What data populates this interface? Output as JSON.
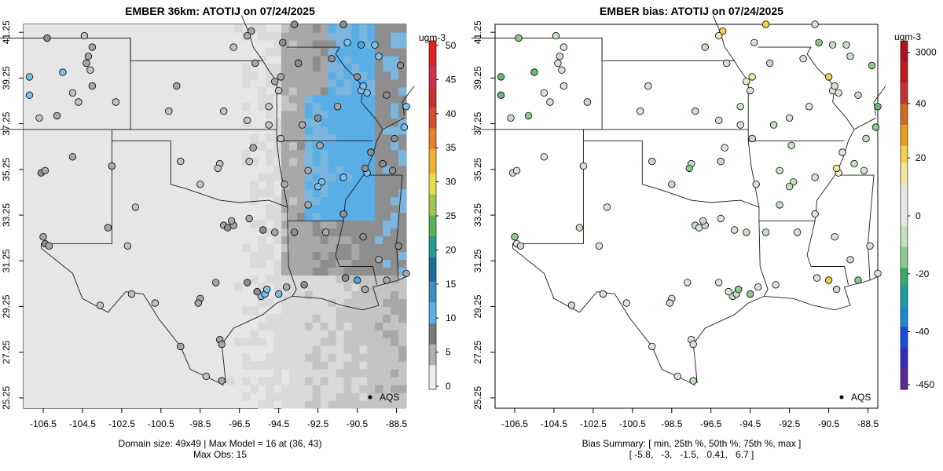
{
  "left_panel": {
    "title": "EMBER 36km: ATOTIJ on 07/24/2025",
    "unit": "ugm-3",
    "colorbar_ticks": [
      "50",
      "45",
      "40",
      "35",
      "30",
      "25",
      "20",
      "15",
      "10",
      "5",
      "0"
    ],
    "caption_line1": "Domain size: 49x49 | Max Model = 16 at (36, 43)",
    "caption_line2": "Max Obs: 15",
    "legend_label": "AQS"
  },
  "right_panel": {
    "title": "EMBER bias: ATOTIJ on 07/24/2025",
    "unit": "ugm-3",
    "colorbar_ticks": [
      "3000",
      "40",
      "20",
      "0",
      "-20",
      "-40",
      "-450"
    ],
    "caption_line1": "Bias Summary: [ min, 25th %, 50th %, 75th %, max ]",
    "caption_line2": "[ -5.8,   -3,   -1.5,   0.41,   6.7 ]",
    "legend_label": "AQS"
  },
  "axes": {
    "x_ticks": [
      "-106.5",
      "-104.5",
      "-102.5",
      "-100.5",
      "-98.5",
      "-96.5",
      "-94.5",
      "-92.5",
      "-90.5",
      "-88.5"
    ],
    "y_ticks": [
      "41.25",
      "39.25",
      "37.25",
      "35.25",
      "33.25",
      "31.25",
      "29.25",
      "27.25",
      "25.25"
    ],
    "xlim": [
      -107.5,
      -88
    ],
    "ylim": [
      24.8,
      41.6
    ]
  },
  "colors": {
    "model_light": "#e6e6e6",
    "model_mid": "#b3b3b3",
    "model_dark": "#8c8c8c",
    "model_blue": "#5aaee6",
    "bias_neutral": "#dedede",
    "bias_green": "#8cc98c",
    "bias_yellow": "#ece271",
    "border": "#1a1a1a"
  },
  "stations": [
    {
      "lon": -106.3,
      "lat": 41.0,
      "obs": 10,
      "bias": -3
    },
    {
      "lon": -104.4,
      "lat": 41.1,
      "obs": 5,
      "bias": -1.5
    },
    {
      "lon": -104.0,
      "lat": 40.6,
      "obs": 7,
      "bias": -1.2
    },
    {
      "lon": -104.2,
      "lat": 40.2,
      "obs": 8,
      "bias": -2
    },
    {
      "lon": -104.3,
      "lat": 39.9,
      "obs": 8,
      "bias": -1
    },
    {
      "lon": -104.1,
      "lat": 39.6,
      "obs": 6,
      "bias": -0.5
    },
    {
      "lon": -105.5,
      "lat": 39.5,
      "obs": 11,
      "bias": -4
    },
    {
      "lon": -104.0,
      "lat": 38.9,
      "obs": 7,
      "bias": -1
    },
    {
      "lon": -105.0,
      "lat": 38.6,
      "obs": 5,
      "bias": -1
    },
    {
      "lon": -104.7,
      "lat": 38.2,
      "obs": 5,
      "bias": -1.3
    },
    {
      "lon": -107.2,
      "lat": 39.3,
      "obs": 12,
      "bias": -5
    },
    {
      "lon": -107.2,
      "lat": 38.5,
      "obs": 12,
      "bias": -4
    },
    {
      "lon": -106.7,
      "lat": 37.5,
      "obs": 6,
      "bias": -2.5
    },
    {
      "lon": -105.8,
      "lat": 37.6,
      "obs": 8,
      "bias": -3
    },
    {
      "lon": -102.8,
      "lat": 38.2,
      "obs": 5,
      "bias": -1.5
    },
    {
      "lon": -100.1,
      "lat": 37.8,
      "obs": 5,
      "bias": -0.8
    },
    {
      "lon": -99.7,
      "lat": 38.9,
      "obs": 7,
      "bias": -1.2
    },
    {
      "lon": -97.3,
      "lat": 37.8,
      "obs": 6,
      "bias": -2
    },
    {
      "lon": -96.1,
      "lat": 37.4,
      "obs": 6,
      "bias": -1
    },
    {
      "lon": -95.0,
      "lat": 38.0,
      "obs": 6,
      "bias": -1.5
    },
    {
      "lon": -94.7,
      "lat": 39.1,
      "obs": 7,
      "bias": 1
    },
    {
      "lon": -94.4,
      "lat": 39.3,
      "obs": 8,
      "bias": 4
    },
    {
      "lon": -94.5,
      "lat": 38.7,
      "obs": 6,
      "bias": -1
    },
    {
      "lon": -95.7,
      "lat": 39.9,
      "obs": 7,
      "bias": -1
    },
    {
      "lon": -96.8,
      "lat": 40.6,
      "obs": 6,
      "bias": -2.2
    },
    {
      "lon": -95.9,
      "lat": 41.3,
      "obs": 7,
      "bias": 5
    },
    {
      "lon": -96.1,
      "lat": 41.1,
      "obs": 8,
      "bias": 2
    },
    {
      "lon": -93.7,
      "lat": 41.6,
      "obs": 9,
      "bias": 5.5
    },
    {
      "lon": -91.2,
      "lat": 41.6,
      "obs": 10,
      "bias": -1
    },
    {
      "lon": -91.0,
      "lat": 40.8,
      "obs": 12,
      "bias": -3
    },
    {
      "lon": -90.3,
      "lat": 40.7,
      "obs": 13,
      "bias": -2
    },
    {
      "lon": -89.6,
      "lat": 40.7,
      "obs": 12,
      "bias": -1.5
    },
    {
      "lon": -89.4,
      "lat": 40.2,
      "obs": 12,
      "bias": -2
    },
    {
      "lon": -90.5,
      "lat": 39.3,
      "obs": 10,
      "bias": 5
    },
    {
      "lon": -90.3,
      "lat": 38.7,
      "obs": 11,
      "bias": 1
    },
    {
      "lon": -90.2,
      "lat": 38.9,
      "obs": 12,
      "bias": -1
    },
    {
      "lon": -90.0,
      "lat": 38.6,
      "obs": 11,
      "bias": -1
    },
    {
      "lon": -89.0,
      "lat": 38.5,
      "obs": 9,
      "bias": -2
    },
    {
      "lon": -88.3,
      "lat": 39.8,
      "obs": 10,
      "bias": -3
    },
    {
      "lon": -88.0,
      "lat": 38.0,
      "obs": 11,
      "bias": -4
    },
    {
      "lon": -91.5,
      "lat": 38.0,
      "obs": 7,
      "bias": -1
    },
    {
      "lon": -92.5,
      "lat": 37.5,
      "obs": 9,
      "bias": -1
    },
    {
      "lon": -93.3,
      "lat": 37.2,
      "obs": 8,
      "bias": -2
    },
    {
      "lon": -94.4,
      "lat": 36.6,
      "obs": 6,
      "bias": -1.5
    },
    {
      "lon": -95.8,
      "lat": 36.2,
      "obs": 7,
      "bias": -1
    },
    {
      "lon": -96.0,
      "lat": 35.6,
      "obs": 6,
      "bias": -2
    },
    {
      "lon": -97.5,
      "lat": 35.5,
      "obs": 6,
      "bias": -2
    },
    {
      "lon": -97.6,
      "lat": 35.3,
      "obs": 6,
      "bias": -3.5
    },
    {
      "lon": -98.5,
      "lat": 34.6,
      "obs": 6,
      "bias": -2
    },
    {
      "lon": -99.5,
      "lat": 35.6,
      "obs": 5,
      "bias": -1.5
    },
    {
      "lon": -103.0,
      "lat": 35.4,
      "obs": 7,
      "bias": -1
    },
    {
      "lon": -106.6,
      "lat": 35.1,
      "obs": 9,
      "bias": -2.5
    },
    {
      "lon": -106.4,
      "lat": 35.2,
      "obs": 8,
      "bias": -1
    },
    {
      "lon": -105.0,
      "lat": 35.8,
      "obs": 7,
      "bias": -1
    },
    {
      "lon": -101.8,
      "lat": 33.6,
      "obs": 6,
      "bias": -1
    },
    {
      "lon": -103.2,
      "lat": 32.7,
      "obs": 7,
      "bias": -1.5
    },
    {
      "lon": -106.5,
      "lat": 32.3,
      "obs": 8,
      "bias": -3
    },
    {
      "lon": -106.4,
      "lat": 32.0,
      "obs": 9,
      "bias": -1
    },
    {
      "lon": -106.2,
      "lat": 31.9,
      "obs": 8,
      "bias": -2
    },
    {
      "lon": -102.2,
      "lat": 31.9,
      "obs": 6,
      "bias": -1
    },
    {
      "lon": -97.3,
      "lat": 32.8,
      "obs": 8,
      "bias": -1.5
    },
    {
      "lon": -97.1,
      "lat": 32.7,
      "obs": 9,
      "bias": -1
    },
    {
      "lon": -96.8,
      "lat": 32.8,
      "obs": 8,
      "bias": -2
    },
    {
      "lon": -96.9,
      "lat": 33.0,
      "obs": 7,
      "bias": -1.5
    },
    {
      "lon": -96.0,
      "lat": 33.1,
      "obs": 7,
      "bias": -1
    },
    {
      "lon": -95.3,
      "lat": 32.6,
      "obs": 9,
      "bias": -1
    },
    {
      "lon": -94.7,
      "lat": 32.5,
      "obs": 8,
      "bias": -1.5
    },
    {
      "lon": -93.7,
      "lat": 32.5,
      "obs": 9,
      "bias": -2
    },
    {
      "lon": -92.1,
      "lat": 32.5,
      "obs": 8,
      "bias": -1
    },
    {
      "lon": -91.2,
      "lat": 33.3,
      "obs": 9,
      "bias": -1
    },
    {
      "lon": -92.3,
      "lat": 34.7,
      "obs": 12,
      "bias": -1.5
    },
    {
      "lon": -92.5,
      "lat": 34.5,
      "obs": 12,
      "bias": -2
    },
    {
      "lon": -91.2,
      "lat": 34.9,
      "obs": 12,
      "bias": -1
    },
    {
      "lon": -90.0,
      "lat": 35.1,
      "obs": 11,
      "bias": 1
    },
    {
      "lon": -90.1,
      "lat": 35.3,
      "obs": 10,
      "bias": 4
    },
    {
      "lon": -89.8,
      "lat": 36.0,
      "obs": 9,
      "bias": -1
    },
    {
      "lon": -89.2,
      "lat": 35.5,
      "obs": 9,
      "bias": -2
    },
    {
      "lon": -88.7,
      "lat": 35.2,
      "obs": 9,
      "bias": -1
    },
    {
      "lon": -94.2,
      "lat": 34.6,
      "obs": 8,
      "bias": -1
    },
    {
      "lon": -93.0,
      "lat": 33.7,
      "obs": 8,
      "bias": -1.5
    },
    {
      "lon": -90.2,
      "lat": 32.3,
      "obs": 10,
      "bias": -1
    },
    {
      "lon": -89.4,
      "lat": 31.3,
      "obs": 7,
      "bias": -1.5
    },
    {
      "lon": -88.4,
      "lat": 31.9,
      "obs": 9,
      "bias": -1
    },
    {
      "lon": -91.1,
      "lat": 30.5,
      "obs": 9,
      "bias": -1
    },
    {
      "lon": -90.1,
      "lat": 30.0,
      "obs": 8,
      "bias": -2
    },
    {
      "lon": -89.0,
      "lat": 30.4,
      "obs": 8,
      "bias": -3
    },
    {
      "lon": -88.0,
      "lat": 30.7,
      "obs": 7,
      "bias": -1
    },
    {
      "lon": -90.5,
      "lat": 30.4,
      "obs": 15,
      "bias": 5
    },
    {
      "lon": -93.2,
      "lat": 30.2,
      "obs": 10,
      "bias": -1
    },
    {
      "lon": -94.1,
      "lat": 30.1,
      "obs": 8,
      "bias": -1
    },
    {
      "lon": -94.5,
      "lat": 29.8,
      "obs": 12,
      "bias": -3
    },
    {
      "lon": -95.4,
      "lat": 29.7,
      "obs": 12,
      "bias": -2.5
    },
    {
      "lon": -95.2,
      "lat": 29.8,
      "obs": 11,
      "bias": -2
    },
    {
      "lon": -95.1,
      "lat": 30.0,
      "obs": 12,
      "bias": -3
    },
    {
      "lon": -95.6,
      "lat": 29.9,
      "obs": 10,
      "bias": -1
    },
    {
      "lon": -96.1,
      "lat": 30.3,
      "obs": 9,
      "bias": -1
    },
    {
      "lon": -97.7,
      "lat": 30.3,
      "obs": 8,
      "bias": -1
    },
    {
      "lon": -98.5,
      "lat": 29.6,
      "obs": 8,
      "bias": -1
    },
    {
      "lon": -98.6,
      "lat": 29.4,
      "obs": 7,
      "bias": -1.5
    },
    {
      "lon": -100.8,
      "lat": 29.4,
      "obs": 6,
      "bias": -1
    },
    {
      "lon": -102.0,
      "lat": 29.8,
      "obs": 6,
      "bias": -1
    },
    {
      "lon": -103.6,
      "lat": 29.3,
      "obs": 6,
      "bias": -2
    },
    {
      "lon": -97.5,
      "lat": 27.8,
      "obs": 7,
      "bias": -1
    },
    {
      "lon": -97.4,
      "lat": 27.6,
      "obs": 7,
      "bias": -1
    },
    {
      "lon": -99.5,
      "lat": 27.5,
      "obs": 7,
      "bias": -1
    },
    {
      "lon": -97.4,
      "lat": 26.0,
      "obs": 7,
      "bias": -2
    },
    {
      "lon": -98.2,
      "lat": 26.2,
      "obs": 6,
      "bias": -1
    },
    {
      "lon": -95.0,
      "lat": 37.2,
      "obs": 6,
      "bias": -1
    },
    {
      "lon": -93.0,
      "lat": 35.2,
      "obs": 7,
      "bias": -2
    },
    {
      "lon": -92.4,
      "lat": 36.3,
      "obs": 8,
      "bias": -1.5
    },
    {
      "lon": -88.6,
      "lat": 36.6,
      "obs": 9,
      "bias": -2.5
    },
    {
      "lon": -88.1,
      "lat": 37.1,
      "obs": 11,
      "bias": -3
    },
    {
      "lon": -94.3,
      "lat": 40.8,
      "obs": 9,
      "bias": -1
    },
    {
      "lon": -93.5,
      "lat": 39.9,
      "obs": 10,
      "bias": -2
    },
    {
      "lon": -91.8,
      "lat": 40.1,
      "obs": 10,
      "bias": -1
    }
  ]
}
